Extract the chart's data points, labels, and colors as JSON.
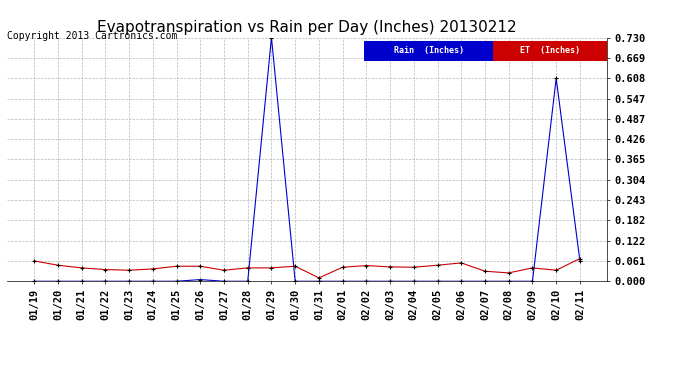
{
  "title": "Evapotranspiration vs Rain per Day (Inches) 20130212",
  "copyright": "Copyright 2013 Cartronics.com",
  "x_labels": [
    "01/19",
    "01/20",
    "01/21",
    "01/22",
    "01/23",
    "01/24",
    "01/25",
    "01/26",
    "01/27",
    "01/28",
    "01/29",
    "01/30",
    "01/31",
    "02/01",
    "02/02",
    "02/03",
    "02/04",
    "02/05",
    "02/06",
    "02/07",
    "02/08",
    "02/09",
    "02/10",
    "02/11"
  ],
  "rain_values": [
    0.0,
    0.0,
    0.0,
    0.0,
    0.0,
    0.0,
    0.0,
    0.005,
    0.0,
    0.0,
    0.73,
    0.0,
    0.0,
    0.0,
    0.0,
    0.0,
    0.0,
    0.0,
    0.0,
    0.0,
    0.0,
    0.0,
    0.608,
    0.061
  ],
  "et_values": [
    0.061,
    0.048,
    0.04,
    0.035,
    0.033,
    0.037,
    0.045,
    0.045,
    0.033,
    0.04,
    0.04,
    0.045,
    0.01,
    0.042,
    0.047,
    0.043,
    0.042,
    0.048,
    0.055,
    0.03,
    0.025,
    0.04,
    0.033,
    0.068
  ],
  "rain_color": "#0000cc",
  "et_color": "#cc0000",
  "background_color": "#ffffff",
  "grid_color": "#b0b0b0",
  "ylim": [
    0.0,
    0.73
  ],
  "yticks": [
    0.0,
    0.061,
    0.122,
    0.182,
    0.243,
    0.304,
    0.365,
    0.426,
    0.487,
    0.547,
    0.608,
    0.669,
    0.73
  ],
  "legend_rain_bg": "#0000cc",
  "legend_et_bg": "#cc0000",
  "title_fontsize": 11,
  "tick_fontsize": 7.5,
  "copyright_fontsize": 7
}
